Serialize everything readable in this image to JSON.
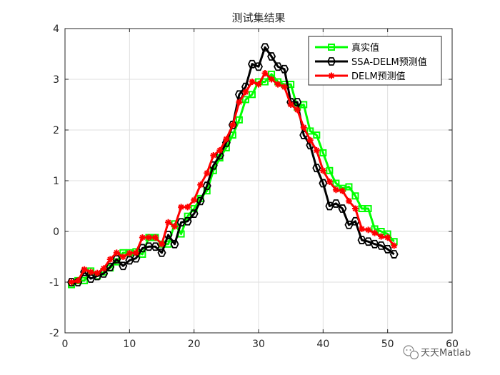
{
  "chart_data": {
    "type": "line",
    "title": "测试集结果",
    "xlabel": "",
    "ylabel": "",
    "xlim": [
      0,
      60
    ],
    "ylim": [
      -2,
      4
    ],
    "xticks": [
      0,
      10,
      20,
      30,
      40,
      50,
      60
    ],
    "yticks": [
      -2,
      -1,
      0,
      1,
      2,
      3,
      4
    ],
    "grid": true,
    "legend_position": "top-right",
    "x": [
      1,
      2,
      3,
      4,
      5,
      6,
      7,
      8,
      9,
      10,
      11,
      12,
      13,
      14,
      15,
      16,
      17,
      18,
      19,
      20,
      21,
      22,
      23,
      24,
      25,
      26,
      27,
      28,
      29,
      30,
      31,
      32,
      33,
      34,
      35,
      36,
      37,
      38,
      39,
      40,
      41,
      42,
      43,
      44,
      45,
      46,
      47,
      48,
      49,
      50,
      51
    ],
    "series": [
      {
        "name": "真实值",
        "color": "#00ff00",
        "marker": "square",
        "values": [
          -1.05,
          -0.97,
          -0.97,
          -0.78,
          -0.88,
          -0.8,
          -0.72,
          -0.6,
          -0.42,
          -0.42,
          -0.4,
          -0.45,
          -0.12,
          -0.12,
          -0.25,
          -0.25,
          0.15,
          -0.05,
          0.3,
          0.45,
          0.65,
          0.8,
          1.2,
          1.45,
          1.65,
          1.9,
          2.2,
          2.6,
          2.7,
          2.95,
          2.95,
          3.1,
          2.95,
          2.9,
          2.9,
          2.45,
          2.5,
          1.98,
          1.9,
          1.55,
          1.2,
          0.95,
          0.85,
          0.88,
          0.7,
          0.45,
          0.45,
          0.05,
          0.0,
          -0.05,
          -0.2
        ]
      },
      {
        "name": "SSA-DELM预测值",
        "color": "#000000",
        "marker": "hexagon",
        "values": [
          -1.0,
          -1.0,
          -0.8,
          -0.93,
          -0.88,
          -0.83,
          -0.7,
          -0.55,
          -0.68,
          -0.57,
          -0.53,
          -0.33,
          -0.3,
          -0.3,
          -0.42,
          -0.07,
          -0.25,
          0.18,
          0.2,
          0.35,
          0.6,
          0.9,
          1.3,
          1.5,
          1.75,
          2.1,
          2.7,
          2.85,
          3.3,
          3.25,
          3.63,
          3.45,
          3.25,
          3.2,
          2.55,
          2.55,
          1.9,
          1.7,
          1.25,
          0.95,
          0.5,
          0.55,
          0.45,
          0.13,
          0.2,
          -0.17,
          -0.2,
          -0.25,
          -0.28,
          -0.35,
          -0.45
        ]
      },
      {
        "name": "DELM预测值",
        "color": "#ff0000",
        "marker": "asterisk",
        "values": [
          -1.0,
          -0.97,
          -0.75,
          -0.8,
          -0.82,
          -0.73,
          -0.55,
          -0.42,
          -0.5,
          -0.43,
          -0.42,
          -0.12,
          -0.12,
          -0.12,
          -0.25,
          0.18,
          0.1,
          0.48,
          0.48,
          0.62,
          0.92,
          1.15,
          1.5,
          1.6,
          1.82,
          2.1,
          2.55,
          2.75,
          2.95,
          2.9,
          3.12,
          3.0,
          2.9,
          2.85,
          2.5,
          2.4,
          2.05,
          1.8,
          1.6,
          1.2,
          0.98,
          0.82,
          0.8,
          0.6,
          0.45,
          0.05,
          0.03,
          -0.03,
          -0.1,
          -0.12,
          -0.28
        ]
      }
    ]
  },
  "watermark": {
    "text": "天天Matlab",
    "icon": "wechat-icon"
  }
}
